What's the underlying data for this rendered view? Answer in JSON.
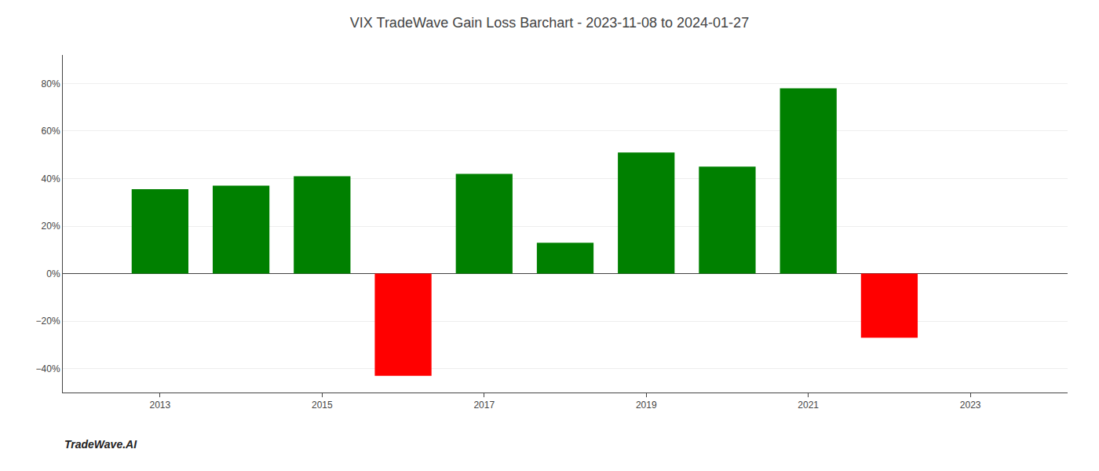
{
  "chart_data": {
    "type": "bar",
    "title": "VIX TradeWave Gain Loss Barchart - 2023-11-08 to 2024-01-27",
    "x": [
      2013,
      2014,
      2015,
      2016,
      2017,
      2018,
      2019,
      2020,
      2021,
      2022
    ],
    "values": [
      0.355,
      0.37,
      0.41,
      -0.43,
      0.42,
      0.13,
      0.51,
      0.45,
      0.78,
      -0.27
    ],
    "colors": [
      "#008000",
      "#008000",
      "#008000",
      "#ff0000",
      "#008000",
      "#008000",
      "#008000",
      "#008000",
      "#008000",
      "#ff0000"
    ],
    "xlim": [
      2011.8,
      2024.2
    ],
    "xticks": [
      2013,
      2015,
      2017,
      2019,
      2021,
      2023
    ],
    "ylim": [
      -0.5,
      0.92
    ],
    "yticks": [
      {
        "value": -0.4,
        "label": "−40%"
      },
      {
        "value": -0.2,
        "label": "−20%"
      },
      {
        "value": 0.0,
        "label": "0%"
      },
      {
        "value": 0.2,
        "label": "20%"
      },
      {
        "value": 0.4,
        "label": "40%"
      },
      {
        "value": 0.6,
        "label": "60%"
      },
      {
        "value": 0.8,
        "label": "80%"
      }
    ],
    "grid": true,
    "annotations": [
      "TradeWave.AI"
    ]
  }
}
